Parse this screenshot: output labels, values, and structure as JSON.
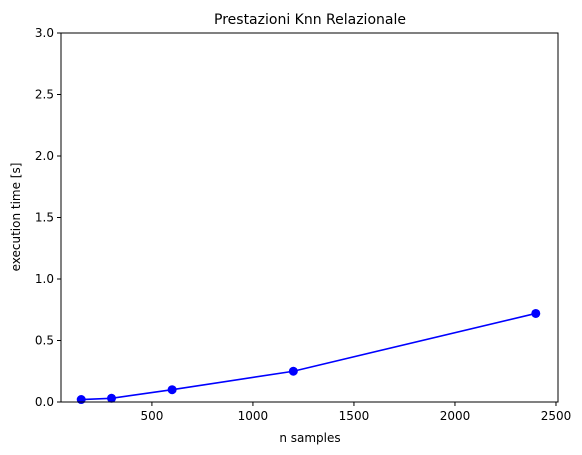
{
  "chart_data": {
    "type": "line",
    "title": "Prestazioni Knn Relazionale",
    "xlabel": "n samples",
    "ylabel": "execution time [s]",
    "xlim": [
      50,
      2510
    ],
    "ylim": [
      0,
      3.0
    ],
    "xticks": [
      500,
      1000,
      1500,
      2000,
      2500
    ],
    "yticks": [
      0.0,
      0.5,
      1.0,
      1.5,
      2.0,
      2.5,
      3.0
    ],
    "xtick_labels": [
      "500",
      "1000",
      "1500",
      "2000",
      "2500"
    ],
    "ytick_labels": [
      "0.0",
      "0.5",
      "1.0",
      "1.5",
      "2.0",
      "2.5",
      "3.0"
    ],
    "grid": false,
    "series": [
      {
        "color": "#0000ff",
        "marker": "circle",
        "x": [
          150,
          300,
          600,
          1200,
          2400
        ],
        "y": [
          0.02,
          0.03,
          0.1,
          0.25,
          0.72
        ]
      }
    ]
  }
}
